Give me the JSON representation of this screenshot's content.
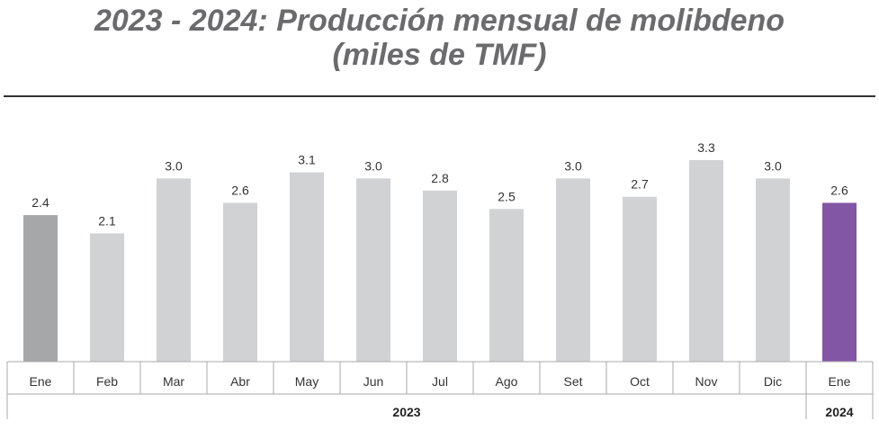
{
  "title_line1": "2023 - 2024: Producción mensual de molibdeno",
  "title_line2": "(miles de TMF)",
  "colors": {
    "bar_default": "#d1d2d4",
    "bar_first": "#a6a7a9",
    "bar_highlight": "#8256a5",
    "axis": "#a9aaac"
  },
  "chart_data": {
    "type": "bar",
    "title": "2023 - 2024: Producción mensual de molibdeno (miles de TMF)",
    "categories": [
      "Ene",
      "Feb",
      "Mar",
      "Abr",
      "May",
      "Jun",
      "Jul",
      "Ago",
      "Set",
      "Oct",
      "Nov",
      "Dic",
      "Ene"
    ],
    "values": [
      2.4,
      2.1,
      3.0,
      2.6,
      3.1,
      3.0,
      2.8,
      2.5,
      3.0,
      2.7,
      3.3,
      3.0,
      2.6
    ],
    "value_labels": [
      "2.4",
      "2.1",
      "3.0",
      "2.6",
      "3.1",
      "3.0",
      "2.8",
      "2.5",
      "3.0",
      "2.7",
      "3.3",
      "3.0",
      "2.6"
    ],
    "groups": [
      {
        "label": "2023",
        "start": 0,
        "end": 11
      },
      {
        "label": "2024",
        "start": 12,
        "end": 12
      }
    ],
    "ylim": [
      0,
      3.3
    ],
    "grid": false,
    "data_labels": true
  }
}
